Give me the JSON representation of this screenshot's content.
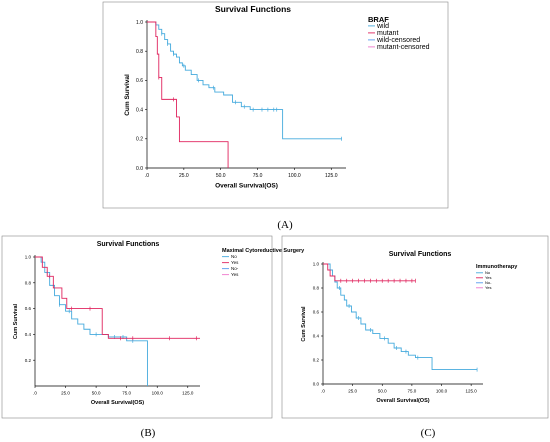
{
  "figure": {
    "panel_labels": [
      "(A)",
      "(B)",
      "(C)"
    ]
  },
  "colors": {
    "blue": "#44aadd",
    "red": "#e0245e",
    "blue2": "#5599ee",
    "pink": "#ee77cc",
    "axis": "#000000",
    "frame": "#888888"
  },
  "chart_data": [
    {
      "type": "line",
      "title": "Survival Functions",
      "xlabel": "Overall Survival(OS)",
      "ylabel": "Cum Survival",
      "xlim": [
        0,
        135
      ],
      "ylim": [
        0,
        1.0
      ],
      "xticks": [
        0,
        25,
        50,
        75,
        100,
        125
      ],
      "xtick_labels": [
        ".0",
        "25.0",
        "50.0",
        "75.0",
        "100.0",
        "125.0"
      ],
      "yticks": [
        0,
        0.2,
        0.4,
        0.6,
        0.8,
        1.0
      ],
      "ytick_labels": [
        "0.0",
        "0.2",
        "0.4",
        "0.6",
        "0.8",
        "1.0"
      ],
      "legend": {
        "title": "BRAF",
        "entries": [
          "wild",
          "mutant",
          "wild-censored",
          "mutant-censored"
        ]
      },
      "series": [
        {
          "name": "wild",
          "color_key": "blue",
          "x": [
            0,
            6,
            8,
            10,
            12,
            14,
            16,
            18,
            20,
            22,
            24,
            26,
            30,
            34,
            38,
            42,
            46,
            52,
            58,
            64,
            70,
            76,
            90,
            92,
            132
          ],
          "y": [
            1.0,
            0.98,
            0.95,
            0.92,
            0.88,
            0.85,
            0.8,
            0.78,
            0.76,
            0.72,
            0.7,
            0.67,
            0.64,
            0.6,
            0.57,
            0.55,
            0.52,
            0.5,
            0.45,
            0.42,
            0.4,
            0.4,
            0.4,
            0.2,
            0.2
          ],
          "censored_x": [
            10,
            14,
            18,
            25,
            35,
            45,
            60,
            66,
            72,
            78,
            82,
            86,
            88,
            132
          ]
        },
        {
          "name": "mutant",
          "color_key": "red",
          "x": [
            0,
            6,
            7,
            8,
            10,
            15,
            20,
            22,
            55
          ],
          "y": [
            1.0,
            0.9,
            0.78,
            0.62,
            0.47,
            0.47,
            0.35,
            0.18,
            0.0
          ],
          "censored_x": [
            8,
            18
          ]
        }
      ]
    },
    {
      "type": "line",
      "title": "Survival Functions",
      "xlabel": "Overall Survival(OS)",
      "ylabel": "Cum Survival",
      "xlim": [
        0,
        135
      ],
      "ylim": [
        0,
        1.0
      ],
      "xticks": [
        0,
        25,
        50,
        75,
        100,
        125
      ],
      "xtick_labels": [
        ".0",
        "25.0",
        "50.0",
        "75.0",
        "100.0",
        "125.0"
      ],
      "yticks": [
        0.2,
        0.4,
        0.6,
        0.8,
        1.0
      ],
      "ytick_labels": [
        "0.2",
        "0.4",
        "0.6",
        "0.8",
        "1.0"
      ],
      "legend": {
        "title": "Maximal Cytoreductive Surgery",
        "entries": [
          "No",
          "Yes",
          "No-",
          "Yes"
        ]
      },
      "series": [
        {
          "name": "No",
          "color_key": "blue",
          "x": [
            0,
            5,
            8,
            12,
            16,
            20,
            25,
            30,
            35,
            40,
            45,
            60,
            75,
            90,
            92
          ],
          "y": [
            1.0,
            0.96,
            0.88,
            0.78,
            0.7,
            0.63,
            0.58,
            0.52,
            0.48,
            0.44,
            0.4,
            0.38,
            0.35,
            0.35,
            0.0
          ],
          "censored_x": [
            10,
            20,
            28,
            50,
            65,
            72,
            80
          ]
        },
        {
          "name": "Yes",
          "color_key": "red",
          "x": [
            0,
            6,
            10,
            15,
            22,
            26,
            40,
            55,
            60,
            135
          ],
          "y": [
            1.0,
            0.92,
            0.85,
            0.76,
            0.68,
            0.6,
            0.6,
            0.4,
            0.37,
            0.37
          ],
          "censored_x": [
            12,
            30,
            45,
            70,
            80,
            110,
            132
          ]
        }
      ]
    },
    {
      "type": "line",
      "title": "Survival Functions",
      "xlabel": "Overall Survival(OS)",
      "ylabel": "Cum Survival",
      "xlim": [
        0,
        135
      ],
      "ylim": [
        0,
        1.0
      ],
      "xticks": [
        0,
        25,
        50,
        75,
        100,
        125
      ],
      "xtick_labels": [
        ".0",
        "25.0",
        "50.0",
        "75.0",
        "100.0",
        "125.0"
      ],
      "yticks": [
        0,
        0.2,
        0.4,
        0.6,
        0.8,
        1.0
      ],
      "ytick_labels": [
        "0.0",
        "0.2",
        "0.4",
        "0.6",
        "0.8",
        "1.0"
      ],
      "legend": {
        "title": "Immunotherapy",
        "entries": [
          "No",
          "Yes",
          "No-",
          "Yes"
        ]
      },
      "series": [
        {
          "name": "No",
          "color_key": "blue",
          "x": [
            0,
            6,
            8,
            10,
            12,
            15,
            18,
            20,
            24,
            28,
            32,
            36,
            42,
            48,
            55,
            60,
            66,
            72,
            78,
            92,
            130
          ],
          "y": [
            1.0,
            0.95,
            0.9,
            0.85,
            0.8,
            0.74,
            0.7,
            0.65,
            0.6,
            0.55,
            0.5,
            0.45,
            0.42,
            0.38,
            0.34,
            0.3,
            0.27,
            0.24,
            0.22,
            0.12,
            0.12
          ],
          "censored_x": [
            14,
            22,
            30,
            40,
            52,
            62,
            70,
            80,
            130
          ]
        },
        {
          "name": "Yes",
          "color_key": "red",
          "x": [
            0,
            4,
            6,
            10,
            78
          ],
          "y": [
            1.0,
            0.95,
            0.9,
            0.86,
            0.86
          ],
          "censored_x": [
            15,
            20,
            25,
            30,
            35,
            40,
            45,
            50,
            55,
            60,
            65,
            70,
            75,
            78
          ]
        }
      ]
    }
  ]
}
